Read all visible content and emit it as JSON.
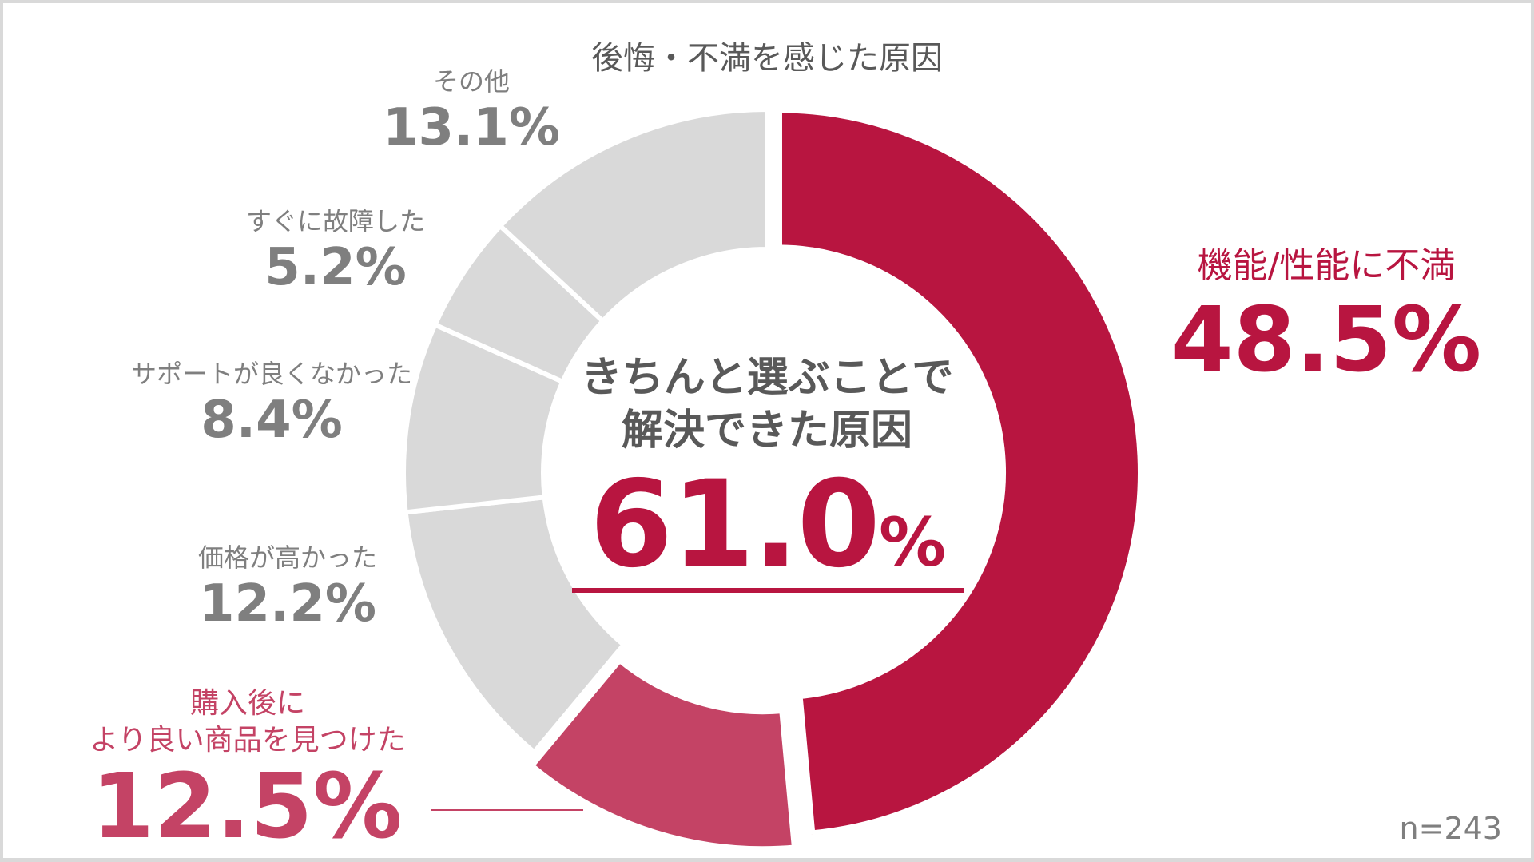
{
  "chart_data": {
    "type": "pie",
    "variant": "donut",
    "title": "後悔・不満を感じた原因",
    "categories": [
      "機能/性能に不満",
      "購入後により良い商品を見つけた",
      "価格が高かった",
      "サポートが良くなかった",
      "すぐに故障した",
      "その他"
    ],
    "values": [
      48.5,
      12.5,
      12.2,
      8.4,
      5.2,
      13.1
    ],
    "unit": "%",
    "colors": [
      "#b81540",
      "#c44365",
      "#d9d9d9",
      "#d9d9d9",
      "#d9d9d9",
      "#d9d9d9"
    ],
    "highlighted": [
      "機能/性能に不満",
      "購入後により良い商品を見つけた"
    ],
    "center_annotation": {
      "caption_line1": "きちんと選ぶことで",
      "caption_line2": "解決できた原因",
      "value": 61.0,
      "value_text": "61.0",
      "unit": "%"
    },
    "sample_size": "n=243",
    "start_angle": "12 o'clock",
    "direction": "clockwise",
    "legend": "none (direct labels)"
  },
  "title": "後悔・不満を感じた原因",
  "center": {
    "line1": "きちんと選ぶことで",
    "line2": "解決できた原因",
    "value": "61.0",
    "unit": "%"
  },
  "labels": {
    "performance": {
      "name": "機能/性能に不満",
      "value": "48.5%"
    },
    "better_product": {
      "name_line1": "購入後に",
      "name_line2": "より良い商品を見つけた",
      "value": "12.5%"
    },
    "price": {
      "name": "価格が高かった",
      "value": "12.2%"
    },
    "support": {
      "name": "サポートが良くなかった",
      "value": "8.4%"
    },
    "broke": {
      "name": "すぐに故障した",
      "value": "5.2%"
    },
    "other": {
      "name": "その他",
      "value": "13.1%"
    }
  },
  "footnote": "n=243"
}
